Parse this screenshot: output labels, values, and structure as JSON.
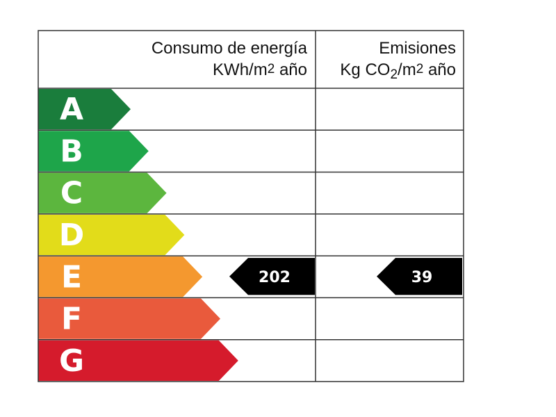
{
  "chart_data": {
    "type": "energy-rating",
    "header": {
      "energy_title": "Consumo de energía",
      "energy_unit": "KWh/m2 año",
      "emissions_title": "Emisiones",
      "emissions_unit": "Kg CO2/m2 año"
    },
    "classes": [
      {
        "letter": "A",
        "color": "#1a7d3c"
      },
      {
        "letter": "B",
        "color": "#1ea54a"
      },
      {
        "letter": "C",
        "color": "#5cb63e"
      },
      {
        "letter": "D",
        "color": "#e2dc1a"
      },
      {
        "letter": "E",
        "color": "#f4982f"
      },
      {
        "letter": "F",
        "color": "#e95a3c"
      },
      {
        "letter": "G",
        "color": "#d51b2c"
      }
    ],
    "energy": {
      "class": "E",
      "value": "202"
    },
    "emissions": {
      "class": "E",
      "value": "39"
    }
  }
}
